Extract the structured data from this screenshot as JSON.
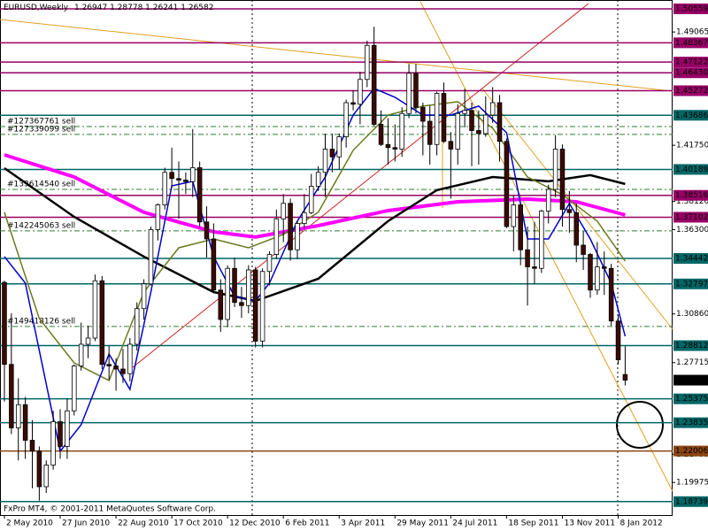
{
  "chart_data": {
    "type": "candlestick",
    "title": "EURUSD,Weekly",
    "footer": "FxPro MT4, © 2001-2011 MetaQuotes Software Corp.",
    "xlim": [
      -0.63,
      95.8
    ],
    "ylim": [
      1.1787,
      1.5113
    ],
    "xticks": [
      {
        "value": 0,
        "label": "2 May 2010"
      },
      {
        "value": 8,
        "label": "27 Jun 2010"
      },
      {
        "value": 16,
        "label": "22 Aug 2010"
      },
      {
        "value": 24,
        "label": "17 Oct 2010"
      },
      {
        "value": 32,
        "label": "12 Dec 2010"
      },
      {
        "value": 40,
        "label": "6 Feb 2011"
      },
      {
        "value": 48,
        "label": "3 Apr 2011"
      },
      {
        "value": 56,
        "label": "29 May 2011"
      },
      {
        "value": 64,
        "label": "24 Jul 2011"
      },
      {
        "value": 72,
        "label": "18 Sep 2011"
      },
      {
        "value": 80,
        "label": "13 Nov 2011"
      },
      {
        "value": 88,
        "label": "8 Jan 2012"
      }
    ],
    "yticks": [
      1.49065,
      {
        "value": 1.4175,
        "label": "1.41750"
      },
      {
        "value": 1.3812,
        "label": "1.38120"
      },
      {
        "value": 1.363,
        "label": "1.36300"
      },
      {
        "value": 1.3086,
        "label": "1.30860"
      },
      1.27715,
      1.21795,
      1.19975
    ],
    "x": [
      0,
      1,
      2,
      3,
      4,
      5,
      6,
      7,
      8,
      9,
      10,
      11,
      12,
      13,
      14,
      15,
      16,
      17,
      18,
      19,
      20,
      21,
      22,
      23,
      24,
      25,
      26,
      27,
      28,
      29,
      30,
      31,
      32,
      33,
      34,
      35,
      36,
      37,
      38,
      39,
      40,
      41,
      42,
      43,
      44,
      45,
      46,
      47,
      48,
      49,
      50,
      51,
      52,
      53,
      54,
      55,
      56,
      57,
      58,
      59,
      60,
      61,
      62,
      63,
      64,
      65,
      66,
      67,
      68,
      69,
      70,
      71,
      72,
      73,
      74,
      75,
      76,
      77,
      78,
      79,
      80,
      81,
      82,
      83,
      84,
      85,
      86,
      87,
      88,
      89
    ],
    "open": [
      1.329,
      1.276,
      1.235,
      1.25,
      1.227,
      1.22,
      1.197,
      1.211,
      1.239,
      1.223,
      1.246,
      1.275,
      1.289,
      1.293,
      1.33,
      1.276,
      1.275,
      1.273,
      1.27,
      1.289,
      1.312,
      1.328,
      1.363,
      1.379,
      1.4,
      1.396,
      1.395,
      1.394,
      1.403,
      1.368,
      1.357,
      1.324,
      1.305,
      1.338,
      1.316,
      1.314,
      1.337,
      1.291,
      1.336,
      1.347,
      1.37,
      1.38,
      1.35,
      1.367,
      1.374,
      1.391,
      1.4,
      1.415,
      1.41,
      1.423,
      1.445,
      1.444,
      1.46,
      1.482,
      1.431,
      1.418,
      1.416,
      1.415,
      1.438,
      1.464,
      1.442,
      1.433,
      1.418,
      1.451,
      1.42,
      1.415,
      1.438,
      1.44,
      1.427,
      1.425,
      1.437,
      1.445,
      1.42,
      1.365,
      1.379,
      1.35,
      1.339,
      1.338,
      1.375,
      1.389,
      1.415,
      1.376,
      1.374,
      1.353,
      1.347,
      1.324,
      1.339,
      1.338,
      1.304,
      1.26947
    ],
    "high": [
      1.33,
      1.309,
      1.267,
      1.255,
      1.24,
      1.223,
      1.214,
      1.246,
      1.247,
      1.254,
      1.276,
      1.303,
      1.301,
      1.334,
      1.333,
      1.288,
      1.28,
      1.286,
      1.293,
      1.316,
      1.331,
      1.365,
      1.38,
      1.403,
      1.416,
      1.407,
      1.4,
      1.428,
      1.407,
      1.378,
      1.367,
      1.331,
      1.34,
      1.345,
      1.326,
      1.34,
      1.339,
      1.338,
      1.349,
      1.376,
      1.386,
      1.383,
      1.369,
      1.386,
      1.399,
      1.404,
      1.425,
      1.425,
      1.425,
      1.447,
      1.453,
      1.465,
      1.485,
      1.494,
      1.44,
      1.435,
      1.431,
      1.442,
      1.47,
      1.47,
      1.445,
      1.443,
      1.452,
      1.458,
      1.426,
      1.444,
      1.454,
      1.445,
      1.44,
      1.449,
      1.455,
      1.45,
      1.422,
      1.385,
      1.38,
      1.365,
      1.368,
      1.376,
      1.392,
      1.424,
      1.418,
      1.388,
      1.38,
      1.362,
      1.348,
      1.355,
      1.349,
      1.341,
      1.308,
      1.28778
    ],
    "low": [
      1.252,
      1.231,
      1.214,
      1.215,
      1.196,
      1.188,
      1.193,
      1.208,
      1.215,
      1.215,
      1.243,
      1.272,
      1.28,
      1.291,
      1.273,
      1.266,
      1.259,
      1.264,
      1.265,
      1.285,
      1.305,
      1.327,
      1.356,
      1.376,
      1.39,
      1.37,
      1.386,
      1.384,
      1.365,
      1.345,
      1.323,
      1.297,
      1.3,
      1.313,
      1.306,
      1.309,
      1.287,
      1.287,
      1.327,
      1.344,
      1.355,
      1.343,
      1.344,
      1.364,
      1.373,
      1.388,
      1.384,
      1.4,
      1.402,
      1.416,
      1.44,
      1.431,
      1.455,
      1.43,
      1.417,
      1.405,
      1.407,
      1.41,
      1.435,
      1.438,
      1.411,
      1.405,
      1.411,
      1.419,
      1.383,
      1.405,
      1.429,
      1.404,
      1.405,
      1.423,
      1.432,
      1.407,
      1.364,
      1.349,
      1.34,
      1.314,
      1.328,
      1.335,
      1.367,
      1.384,
      1.365,
      1.361,
      1.342,
      1.337,
      1.319,
      1.321,
      1.321,
      1.301,
      1.276,
      1.26241
    ],
    "close": [
      1.276,
      1.235,
      1.25,
      1.227,
      1.22,
      1.197,
      1.211,
      1.239,
      1.223,
      1.246,
      1.275,
      1.289,
      1.293,
      1.33,
      1.276,
      1.275,
      1.273,
      1.27,
      1.289,
      1.312,
      1.328,
      1.363,
      1.379,
      1.4,
      1.396,
      1.395,
      1.394,
      1.403,
      1.368,
      1.357,
      1.324,
      1.305,
      1.338,
      1.316,
      1.314,
      1.337,
      1.291,
      1.336,
      1.347,
      1.37,
      1.38,
      1.35,
      1.367,
      1.374,
      1.391,
      1.4,
      1.415,
      1.41,
      1.423,
      1.445,
      1.444,
      1.46,
      1.482,
      1.431,
      1.418,
      1.416,
      1.415,
      1.438,
      1.464,
      1.442,
      1.433,
      1.418,
      1.451,
      1.42,
      1.415,
      1.438,
      1.44,
      1.427,
      1.425,
      1.437,
      1.445,
      1.42,
      1.365,
      1.379,
      1.35,
      1.339,
      1.338,
      1.375,
      1.389,
      1.415,
      1.376,
      1.374,
      1.353,
      1.347,
      1.324,
      1.339,
      1.338,
      1.304,
      1.279,
      1.26582
    ],
    "up_color": "#ffffff",
    "down_color": "#3c0a00",
    "indicators": [
      {
        "color": "#ff00ff",
        "width": 4,
        "x": [
          0,
          10,
          20,
          30,
          36,
          45,
          55,
          65,
          75,
          82,
          89
        ],
        "values": [
          1.4113,
          1.397,
          1.3742,
          1.3616,
          1.3582,
          1.3656,
          1.3753,
          1.381,
          1.3827,
          1.381,
          1.3725
        ]
      },
      {
        "color": "#000000",
        "width": 2.5,
        "x": [
          0,
          10,
          20,
          30,
          36,
          45,
          55,
          62,
          70,
          78,
          84,
          89
        ],
        "values": [
          1.4027,
          1.3713,
          1.3456,
          1.3227,
          1.317,
          1.3313,
          1.3685,
          1.3885,
          1.397,
          1.3942,
          1.3982,
          1.3925
        ]
      },
      {
        "color": "#6b7a1e",
        "width": 1.5,
        "x": [
          0,
          5,
          10,
          15,
          20,
          25,
          30,
          35,
          40,
          45,
          50,
          55,
          60,
          65,
          70,
          75,
          80,
          85,
          89
        ],
        "values": [
          1.3742,
          1.3056,
          1.277,
          1.2656,
          1.3227,
          1.3513,
          1.357,
          1.3513,
          1.3599,
          1.3742,
          1.4142,
          1.437,
          1.4428,
          1.4456,
          1.4285,
          1.397,
          1.3856,
          1.3685,
          1.3427
        ]
      },
      {
        "color": "#0000cc",
        "width": 1.5,
        "x": [
          0,
          3,
          8,
          11,
          15,
          18,
          21,
          24,
          27,
          30,
          33,
          36,
          38,
          42,
          46,
          50,
          53,
          56,
          60,
          64,
          68,
          72,
          75,
          78,
          81,
          84,
          87,
          89
        ],
        "values": [
          1.3456,
          1.3285,
          1.2199,
          1.237,
          1.2827,
          1.2599,
          1.3227,
          1.3913,
          1.3942,
          1.3456,
          1.3199,
          1.317,
          1.3285,
          1.3685,
          1.397,
          1.437,
          1.4542,
          1.4485,
          1.437,
          1.437,
          1.4428,
          1.4256,
          1.357,
          1.357,
          1.3799,
          1.357,
          1.3285,
          1.2942
        ]
      }
    ],
    "levels": [
      1.50559,
      1.48367,
      1.47122,
      {
        "value": 1.4643,
        "label": "1.46430"
      },
      1.45272,
      1.43686,
      1.40189,
      1.38516,
      1.37102,
      1.34442,
      1.32797,
      1.28812,
      1.25375,
      1.23835,
      1.22006,
      1.18739
    ],
    "level_colors": [
      "#990066",
      "#990066",
      "#990066",
      "#990066",
      "#990066",
      "#006666",
      "#006666",
      "#990066",
      "#990066",
      "#006666",
      "#006666",
      "#006666",
      "#006666",
      "#006666",
      "#8b4513",
      "#006666"
    ],
    "orders": [
      {
        "label": "#127367761 sell",
        "price": 1.4296
      },
      {
        "label": "#127339099 sell",
        "price": 1.4245
      },
      {
        "label": "#133614540 sell",
        "price": 1.389
      },
      {
        "label": "#142245063 sell",
        "price": 1.3622
      },
      {
        "label": "#149418126 sell",
        "price": 1.3005
      }
    ],
    "order_color": "#2e7d32",
    "grid": false
  }
}
